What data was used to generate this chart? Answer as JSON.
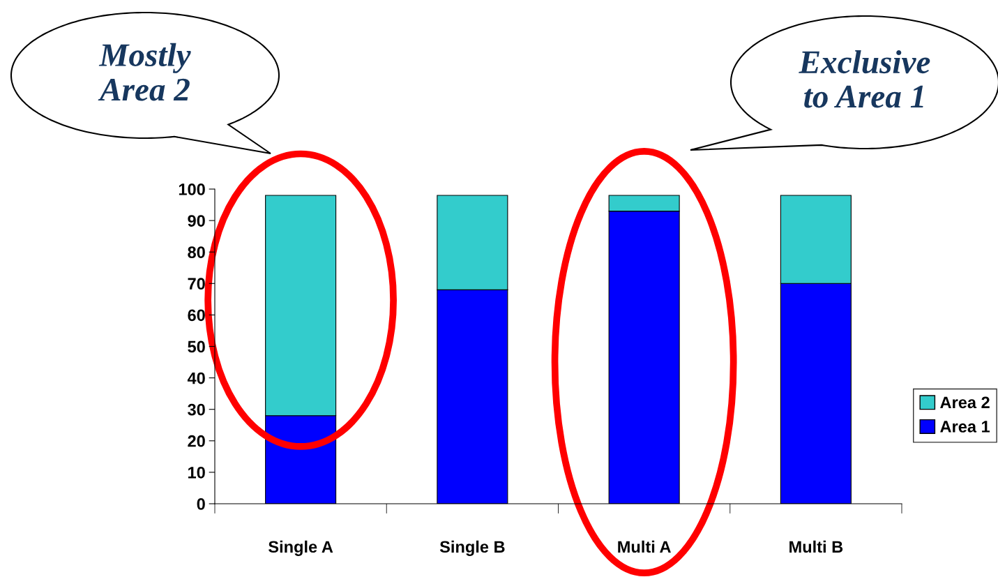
{
  "chart_data": {
    "type": "bar",
    "stacked": true,
    "categories": [
      "Single A",
      "Single B",
      "Multi A",
      "Multi B"
    ],
    "series": [
      {
        "name": "Area 1",
        "color": "#0000ff",
        "values": [
          28,
          68,
          93,
          70
        ]
      },
      {
        "name": "Area 2",
        "color": "#33cccc",
        "values": [
          70,
          30,
          5,
          28
        ]
      }
    ],
    "ylim": [
      0,
      100
    ],
    "yticks": [
      0,
      10,
      20,
      30,
      40,
      50,
      60,
      70,
      80,
      90,
      100
    ],
    "grid": false,
    "legend": "right",
    "annotations": [
      "Mostly\nArea 2",
      "Exclusive\nto Area 1"
    ]
  }
}
